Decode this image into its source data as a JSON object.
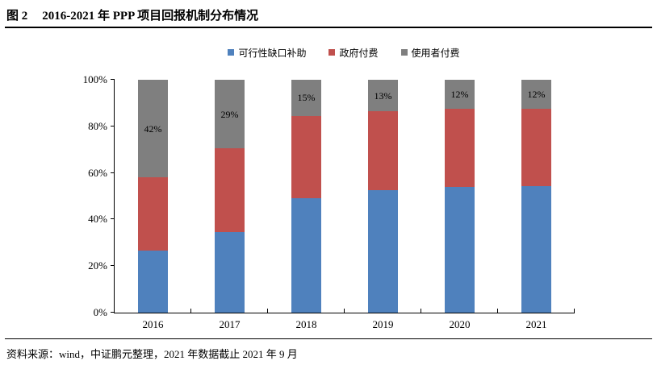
{
  "header": {
    "figure_label": "图 2",
    "title": "2016-2021 年 PPP 项目回报机制分布情况"
  },
  "chart_data": {
    "type": "bar",
    "stacked": true,
    "unit": "percent",
    "title": "2016-2021 年 PPP 项目回报机制分布情况",
    "categories": [
      "2016",
      "2017",
      "2018",
      "2019",
      "2020",
      "2021"
    ],
    "series": [
      {
        "name": "可行性缺口补助",
        "color": "#4F81BD",
        "values": [
          26.5,
          34.5,
          49,
          52.5,
          54,
          54.5
        ]
      },
      {
        "name": "政府付费",
        "color": "#C0504D",
        "values": [
          31.5,
          36,
          35.5,
          34,
          33.5,
          33.2
        ]
      },
      {
        "name": "使用者付费",
        "color": "#7F7F7F",
        "values": [
          42,
          29.5,
          15.5,
          13.5,
          12.5,
          12.3
        ],
        "data_labels": [
          "42%",
          "29%",
          "15%",
          "13%",
          "12%",
          "12%"
        ]
      }
    ],
    "y_axis": {
      "min": 0,
      "max": 100,
      "tick_labels": [
        "0%",
        "20%",
        "40%",
        "60%",
        "80%",
        "100%"
      ]
    },
    "legend_position": "top",
    "grid": false,
    "axis_color": "#000000"
  },
  "footer": {
    "source": "资料来源：wind，中证鹏元整理，2021 年数据截止 2021 年 9 月"
  }
}
